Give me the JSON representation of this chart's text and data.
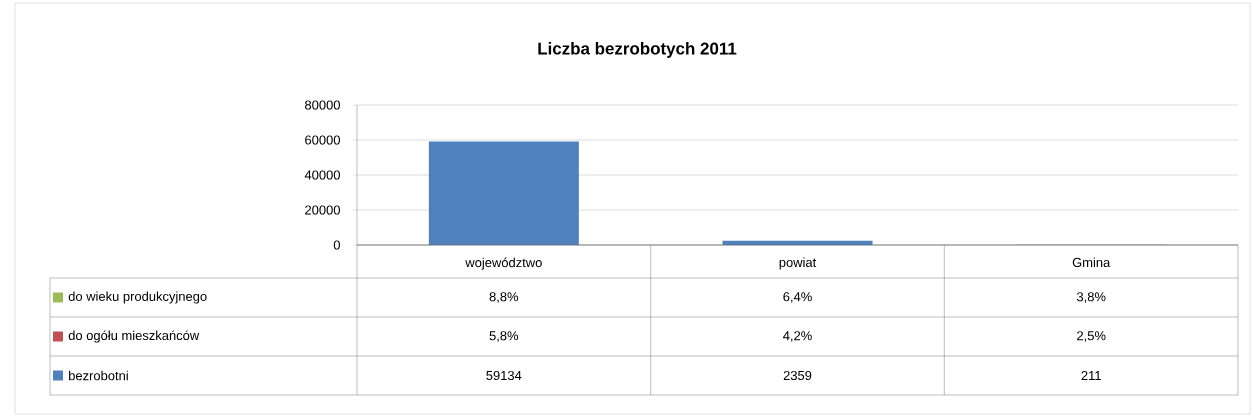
{
  "chart_data": {
    "type": "bar",
    "title": "Liczba bezrobotych 2011",
    "categories": [
      "województwo",
      "powiat",
      "Gmina"
    ],
    "stacked": true,
    "ylim": [
      0,
      80000
    ],
    "yticks": [
      0,
      20000,
      40000,
      60000,
      80000
    ],
    "grid": "y",
    "legend": "bottom",
    "series": [
      {
        "name": "bezrobotni",
        "color": "#4f81bd",
        "values": [
          59134,
          2359,
          211
        ],
        "value_labels": [
          "59134",
          "2359",
          "211"
        ]
      },
      {
        "name": "do ogółu mieszkańców",
        "color": "#c0504d",
        "values": [
          0.058,
          0.042,
          0.025
        ],
        "value_labels": [
          "5,8%",
          "4,2%",
          "2,5%"
        ]
      },
      {
        "name": "do wieku produkcyjnego",
        "color": "#9bbb59",
        "values": [
          0.088,
          0.064,
          0.038
        ],
        "value_labels": [
          "8,8%",
          "6,4%",
          "3,8%"
        ]
      }
    ]
  }
}
